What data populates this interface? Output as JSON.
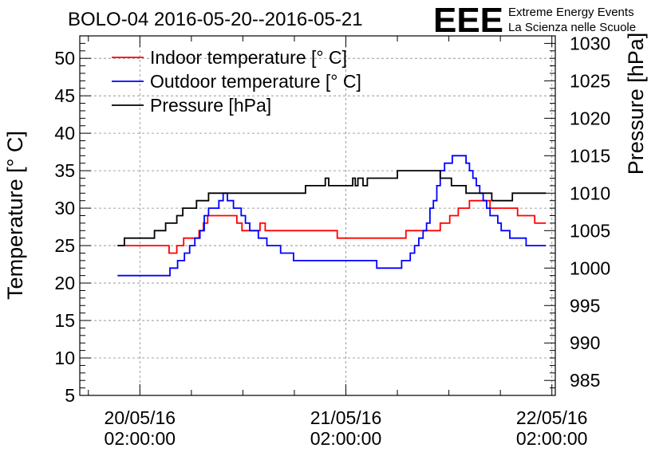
{
  "chart_data": {
    "type": "line",
    "title": "BOLO-04 2016-05-20--2016-05-21",
    "brand": {
      "logo_text": "EEE",
      "line1": "Extreme Energy Events",
      "line2": "La Scienza nelle Scuole",
      "color": "#0000ff"
    },
    "ylabel": "Temperature [° C]",
    "y2label": "Pressure [hPa]",
    "ylim": [
      5,
      53
    ],
    "y2lim": [
      983,
      1031
    ],
    "yticks": [
      "5",
      "10",
      "15",
      "20",
      "25",
      "30",
      "35",
      "40",
      "45",
      "50"
    ],
    "y2ticks": [
      "985",
      "990",
      "995",
      "1000",
      "1005",
      "1010",
      "1015",
      "1020",
      "1025",
      "1030"
    ],
    "xticks": [
      {
        "date": "20/05/16",
        "time": "02:00:00",
        "hours": 0
      },
      {
        "date": "21/05/16",
        "time": "02:00:00",
        "hours": 24
      },
      {
        "date": "22/05/16",
        "time": "02:00:00",
        "hours": 48
      }
    ],
    "xlim_hours": [
      -7,
      48.4
    ],
    "grid": true,
    "legend_position": "top-left",
    "series": [
      {
        "name": "Indoor temperature [° C]",
        "color": "#ff0000",
        "axis": "left",
        "x_hours": [
          -2.6,
          3.1,
          3.4,
          4.0,
          4.3,
          4.8,
          5.1,
          6.1,
          6.9,
          7.4,
          7.9,
          8.4,
          9.0,
          9.4,
          9.9,
          10.5,
          11.0,
          11.3,
          11.6,
          11.9,
          12.2,
          12.5,
          13.1,
          14.0,
          14.6,
          15.2,
          15.6,
          16.2,
          16.8,
          17.5,
          18.1,
          18.4,
          18.9,
          19.3,
          19.9,
          20.2,
          20.9,
          22.0,
          23.0,
          24.0,
          25.0,
          26.0,
          27.0,
          28.0,
          29.0,
          30.0,
          31.0,
          32.0,
          32.7,
          34.0,
          35.0,
          36.1,
          36.6,
          37.1,
          37.6,
          38.4,
          39.0,
          40.2,
          40.8,
          41.3,
          41.8,
          43.0,
          44.0,
          44.5,
          46.0,
          47.3
        ],
        "values": [
          25,
          25,
          24,
          24,
          25,
          25,
          26,
          26,
          27,
          28,
          29,
          29,
          29,
          29,
          29,
          29,
          29,
          28,
          28,
          27,
          27,
          27,
          27,
          28,
          27,
          27,
          27,
          27,
          27,
          27,
          27,
          27,
          27,
          27,
          27,
          27,
          27,
          27,
          26,
          26,
          26,
          26,
          26,
          26,
          26,
          26,
          27,
          27,
          27,
          27,
          28,
          29,
          29,
          30,
          30,
          31,
          31,
          31,
          30,
          30,
          30,
          30,
          29,
          29,
          28,
          28
        ]
      },
      {
        "name": "Outdoor temperature [° C]",
        "color": "#0000ff",
        "axis": "left",
        "x_hours": [
          -2.6,
          1.0,
          2.3,
          3.5,
          4.4,
          5.2,
          5.8,
          6.4,
          7.0,
          7.5,
          8.0,
          8.6,
          9.2,
          9.7,
          10.2,
          10.9,
          11.8,
          12.3,
          12.8,
          13.3,
          13.8,
          14.3,
          14.8,
          15.4,
          15.9,
          16.4,
          16.9,
          17.4,
          17.9,
          18.4,
          19.2,
          20.2,
          21.2,
          22.2,
          23.2,
          24.2,
          25.0,
          26.0,
          27.0,
          27.6,
          28.2,
          28.8,
          29.4,
          29.9,
          30.5,
          31.0,
          31.5,
          32.0,
          32.5,
          33.0,
          33.4,
          33.8,
          34.2,
          34.6,
          35.0,
          35.5,
          35.9,
          36.4,
          36.8,
          37.2,
          37.6,
          38.0,
          38.4,
          38.8,
          39.2,
          39.6,
          40.0,
          40.4,
          40.8,
          41.3,
          41.7,
          42.1,
          42.6,
          43.1,
          43.5,
          44.0,
          44.5,
          45.0,
          45.5,
          46.0,
          46.5,
          47.3
        ],
        "values": [
          21,
          21,
          21,
          22,
          23,
          24,
          25,
          26,
          27,
          29,
          30,
          30,
          31,
          32,
          31,
          30,
          29,
          28,
          27,
          27,
          26,
          26,
          25,
          25,
          25,
          24,
          24,
          24,
          23,
          23,
          23,
          23,
          23,
          23,
          23,
          23,
          23,
          23,
          23,
          22,
          22,
          22,
          22,
          22,
          23,
          23,
          24,
          25,
          26,
          27,
          28,
          30,
          31,
          33,
          35,
          36,
          36,
          37,
          37,
          37,
          37,
          36,
          35,
          34,
          33,
          32,
          31,
          30,
          29,
          29,
          28,
          27,
          27,
          26,
          26,
          26,
          26,
          25,
          25,
          25,
          25,
          25
        ]
      },
      {
        "name": "Pressure [hPa]",
        "color": "#000000",
        "axis": "right",
        "x_hours": [
          -2.6,
          -2.1,
          -1.8,
          -1.2,
          1.0,
          1.7,
          2.4,
          3.0,
          3.6,
          4.3,
          5.0,
          5.5,
          6.0,
          6.6,
          7.1,
          7.6,
          8.0,
          8.5,
          9.0,
          9.5,
          10.0,
          10.5,
          11.0,
          12.0,
          14.0,
          15.5,
          17.0,
          18.0,
          19.3,
          20.2,
          21.2,
          21.6,
          22.0,
          22.4,
          22.8,
          23.2,
          24.0,
          24.4,
          24.8,
          25.1,
          25.4,
          25.7,
          26.0,
          26.5,
          27.0,
          28.0,
          29.0,
          30.0,
          31.0,
          32.0,
          33.0,
          34.0,
          35.0,
          35.8,
          36.3,
          36.8,
          37.4,
          38.0,
          38.6,
          39.2,
          39.8,
          40.4,
          41.0,
          41.6,
          42.2,
          42.8,
          43.4,
          44.0,
          44.8,
          45.5,
          46.3,
          47.3
        ],
        "values": [
          1003,
          1003,
          1004,
          1004,
          1004,
          1005,
          1005,
          1006,
          1006,
          1007,
          1008,
          1008,
          1008,
          1009,
          1009,
          1009,
          1010,
          1010,
          1010,
          1010,
          1010,
          1010,
          1010,
          1010,
          1010,
          1010,
          1010,
          1010,
          1011,
          1011,
          1011,
          1012,
          1011,
          1011,
          1011,
          1011,
          1011,
          1011,
          1012,
          1011,
          1012,
          1012,
          1011,
          1012,
          1012,
          1012,
          1012,
          1013,
          1013,
          1013,
          1013,
          1013,
          1012,
          1012,
          1011,
          1011,
          1011,
          1010,
          1010,
          1010,
          1010,
          1010,
          1009,
          1009,
          1009,
          1009,
          1010,
          1010,
          1010,
          1010,
          1010,
          1010
        ]
      }
    ]
  }
}
